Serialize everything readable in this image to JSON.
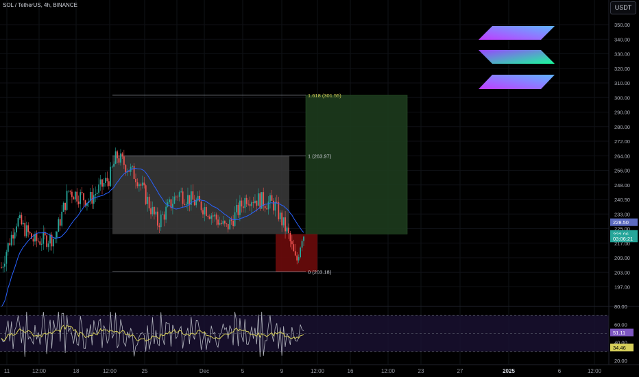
{
  "header": {
    "title": "SOL / TetherUS, 4h, BINANCE"
  },
  "currency_button": "USDT",
  "colors": {
    "up": "#26a69a",
    "down": "#ef5350",
    "ma": "#2962ff",
    "rsi_line": "#b2b5be",
    "rsi_ma": "#d6cf5a",
    "fib": "#9ea3ad",
    "target_zone": "#1d3b1d",
    "stop_zone": "#6b0b0b",
    "range_box": "#3b3b3b"
  },
  "chart_data": {
    "type": "candlestick",
    "title": "SOL / TetherUS, 4h, BINANCE",
    "x_ticks": [
      "11",
      "12:00",
      "18",
      "12:00",
      "25",
      "Dec",
      "5",
      "9",
      "12:00",
      "16",
      "12:00",
      "23",
      "27",
      "2025",
      "6",
      "12:00"
    ],
    "y_ticks": [
      350,
      340,
      330,
      320,
      310,
      300,
      290,
      280,
      272,
      264,
      256,
      248,
      240.5,
      233,
      225,
      217,
      209,
      203,
      197
    ],
    "y_tick_labels": [
      "350.00",
      "340.00",
      "330.00",
      "320.00",
      "310.00",
      "300.00",
      "290.00",
      "280.00",
      "272.00",
      "264.00",
      "256.00",
      "248.00",
      "240.50",
      "233.00",
      "225.00",
      "217.00",
      "209.00",
      "203.00",
      "197.00"
    ],
    "price_labels": [
      {
        "text": "222.06",
        "value": 222.06,
        "color": "#26a69a"
      },
      {
        "text": "03:06:21",
        "value": 219.6,
        "color": "#26a69a"
      },
      {
        "text": "228.50",
        "value": 228.5,
        "color": "#5c6bc0"
      }
    ],
    "fib_levels": [
      {
        "label": "1.618 (301.55)",
        "value": 301.55
      },
      {
        "label": "1 (263.97)",
        "value": 263.97
      },
      {
        "label": "0 (203.18)",
        "value": 203.18
      }
    ],
    "range_box": {
      "top": 263.97,
      "bottom": 222.0
    },
    "target_zone": {
      "top": 301.55,
      "bottom": 222.0
    },
    "stop_zone": {
      "top": 222.0,
      "bottom": 203.18
    },
    "rsi": {
      "y_ticks": [
        80,
        60,
        40,
        20
      ],
      "y_tick_labels": [
        "80.00",
        "60.00",
        "40.00",
        "20.00"
      ],
      "levels": [
        70,
        50,
        30
      ],
      "current_labels": [
        {
          "text": "51.11",
          "value": 51.11,
          "color": "#7e57c2"
        },
        {
          "text": "34.46",
          "value": 34.46,
          "color": "#d6cf5a"
        }
      ]
    }
  }
}
